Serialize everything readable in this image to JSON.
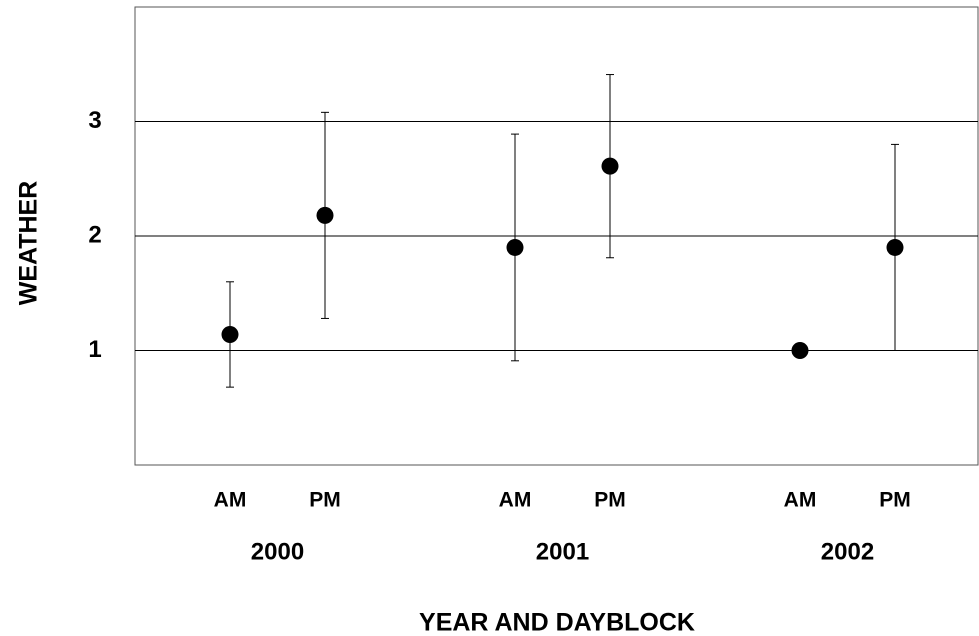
{
  "chart_data": {
    "type": "errorbar",
    "x_label": "YEAR AND DAYBLOCK",
    "y_label": "WEATHER",
    "categories": [
      "AM",
      "PM",
      "AM",
      "PM",
      "AM",
      "PM"
    ],
    "groups": [
      "2000",
      "2001",
      "2002"
    ],
    "values": [
      1.14,
      2.18,
      1.9,
      2.61,
      1.0,
      1.9
    ],
    "errors": [
      0.46,
      0.9,
      0.99,
      0.8,
      0,
      0.9
    ],
    "color": "#000000",
    "ylim": [
      0,
      4
    ],
    "yticks": [
      1,
      2,
      3
    ],
    "grid": true
  }
}
